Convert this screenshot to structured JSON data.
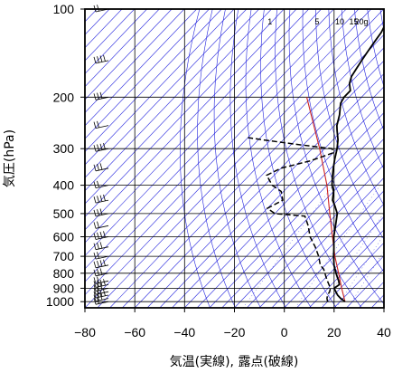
{
  "chart_data": {
    "type": "line",
    "chart_kind": "skew-t log-p diagram",
    "xlabel": "気温(実線), 露点(破線)",
    "ylabel": "気圧(hPa)",
    "xlim": [
      -80,
      40
    ],
    "ylim": [
      1050,
      100
    ],
    "yscale": "log",
    "grid": true,
    "x_ticks": [
      -80,
      -60,
      -40,
      -20,
      0,
      20,
      40
    ],
    "y_ticks": [
      100,
      200,
      300,
      400,
      500,
      600,
      700,
      800,
      900,
      1000
    ],
    "mixing_ratio_labels": [
      "1",
      "5",
      "10",
      "15",
      "20g"
    ],
    "mixing_ratio_values": [
      1,
      5,
      10,
      15,
      20
    ],
    "colors": {
      "temperature": "#000000",
      "dewpoint": "#000000",
      "isotherms_dry_adiabats": "#2222dd",
      "moist_adiabat": "#cc2222",
      "parcel_path": "#cc2222",
      "grid": "#000000"
    },
    "series": [
      {
        "points": [
          [
            1000,
            22
          ],
          [
            975,
            19
          ],
          [
            950,
            16.5
          ],
          [
            925,
            14.5
          ],
          [
            900,
            12.5
          ],
          [
            875,
            13.2
          ],
          [
            850,
            11.5
          ],
          [
            825,
            9.5
          ],
          [
            800,
            7.5
          ],
          [
            775,
            5.5
          ],
          [
            750,
            3.5
          ],
          [
            700,
            0
          ],
          [
            650,
            -3.5
          ],
          [
            600,
            -7.5
          ],
          [
            550,
            -11
          ],
          [
            500,
            -15
          ],
          [
            470,
            -19
          ],
          [
            450,
            -22
          ],
          [
            420,
            -25
          ],
          [
            400,
            -28
          ],
          [
            375,
            -31
          ],
          [
            350,
            -34
          ],
          [
            325,
            -37
          ],
          [
            300,
            -40
          ],
          [
            280,
            -43
          ],
          [
            260,
            -47
          ],
          [
            250,
            -49
          ],
          [
            230,
            -52
          ],
          [
            210,
            -56
          ],
          [
            200,
            -57
          ],
          [
            190,
            -57
          ],
          [
            180,
            -60
          ],
          [
            170,
            -62
          ],
          [
            160,
            -63
          ],
          [
            150,
            -64
          ],
          [
            140,
            -65
          ],
          [
            130,
            -66
          ],
          [
            120,
            -67
          ],
          [
            110,
            -69
          ],
          [
            105,
            -70
          ],
          [
            100,
            -71
          ]
        ]
      },
      {
        "points": [
          [
            1000,
            15
          ],
          [
            975,
            13.5
          ],
          [
            950,
            12.5
          ],
          [
            925,
            12
          ],
          [
            900,
            11
          ],
          [
            875,
            9
          ],
          [
            850,
            7
          ],
          [
            825,
            5
          ],
          [
            800,
            3
          ],
          [
            775,
            1
          ],
          [
            750,
            -2
          ],
          [
            700,
            -6
          ],
          [
            650,
            -11
          ],
          [
            600,
            -17
          ],
          [
            550,
            -22
          ],
          [
            510,
            -27
          ],
          [
            500,
            -40
          ],
          [
            480,
            -45
          ],
          [
            450,
            -42
          ],
          [
            420,
            -46
          ],
          [
            400,
            -52
          ],
          [
            370,
            -58
          ],
          [
            350,
            -55
          ],
          [
            330,
            -46
          ],
          [
            310,
            -40
          ],
          [
            300,
            -42
          ],
          [
            290,
            -58
          ],
          [
            280,
            -73
          ],
          [
            275,
            -80
          ]
        ]
      }
    ],
    "reference_lines": {
      "parcel_path": [
        [
          1000,
          22
        ],
        [
          900,
          15.5
        ],
        [
          800,
          8.5
        ],
        [
          700,
          0.5
        ],
        [
          600,
          -8
        ],
        [
          500,
          -18
        ],
        [
          400,
          -30
        ],
        [
          300,
          -47
        ],
        [
          200,
          -72
        ]
      ],
      "isotherm_spacing": 5,
      "dry_adiabat_theta_range": [
        240,
        460
      ],
      "dry_adiabat_spacing": 10
    },
    "wind_barbs": {
      "levels": [
        1000,
        975,
        950,
        925,
        900,
        875,
        850,
        800,
        750,
        700,
        650,
        600,
        550,
        500,
        450,
        400,
        350,
        300,
        250,
        200,
        150,
        100
      ],
      "shown": true
    }
  }
}
